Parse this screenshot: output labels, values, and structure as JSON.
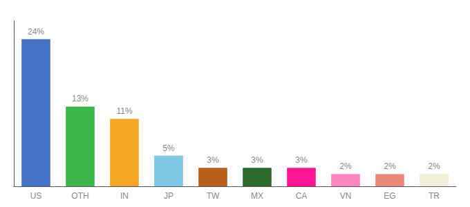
{
  "chart_data": {
    "type": "bar",
    "categories": [
      "US",
      "OTH",
      "IN",
      "JP",
      "TW",
      "MX",
      "CA",
      "VN",
      "EG",
      "TR"
    ],
    "values": [
      24,
      13,
      11,
      5,
      3,
      3,
      3,
      2,
      2,
      2
    ],
    "value_labels": [
      "24%",
      "13%",
      "11%",
      "5%",
      "3%",
      "3%",
      "3%",
      "2%",
      "2%",
      "2%"
    ],
    "colors": [
      "#4472c4",
      "#3cb54a",
      "#f5a623",
      "#7ec8e3",
      "#b8601a",
      "#2d6a2d",
      "#ff1493",
      "#ff85c0",
      "#e8897a",
      "#f0efd8"
    ],
    "ylim": [
      0,
      27
    ],
    "data_labels": true,
    "tick_labels": "x",
    "grid": false
  }
}
